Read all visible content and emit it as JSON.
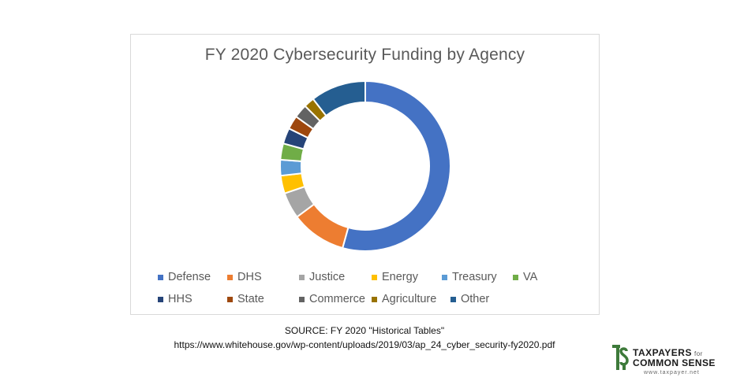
{
  "chart_data": {
    "type": "pie",
    "subtype": "donut",
    "title": "FY 2020 Cybersecurity Funding by Agency",
    "legend_position": "bottom",
    "categories": [
      "Defense",
      "DHS",
      "Justice",
      "Energy",
      "Treasury",
      "VA",
      "HHS",
      "State",
      "Commerce",
      "Agriculture",
      "Other"
    ],
    "values": [
      54.3,
      10.5,
      5.0,
      3.4,
      3.0,
      3.1,
      3.0,
      2.6,
      2.6,
      2.0,
      10.5
    ],
    "colors": [
      "#4472c4",
      "#ed7d31",
      "#a5a5a5",
      "#ffc000",
      "#5b9bd5",
      "#70ad47",
      "#264478",
      "#9e480e",
      "#636363",
      "#997300",
      "#255e91"
    ]
  },
  "legend": {
    "rows": [
      [
        "Defense",
        "DHS",
        "Justice",
        "Energy",
        "Treasury",
        "VA"
      ],
      [
        "HHS",
        "State",
        "Commerce",
        "Agriculture",
        "Other"
      ]
    ]
  },
  "source": {
    "line1": "SOURCE: FY 2020 \"Historical Tables\"",
    "line2": "https://www.whitehouse.gov/wp-content/uploads/2019/03/ap_24_cyber_security-fy2020.pdf"
  },
  "logo": {
    "line1": "TAXPAYERS",
    "for": "for",
    "line2": "COMMON SENSE",
    "url": "www.taxpayer.net"
  }
}
